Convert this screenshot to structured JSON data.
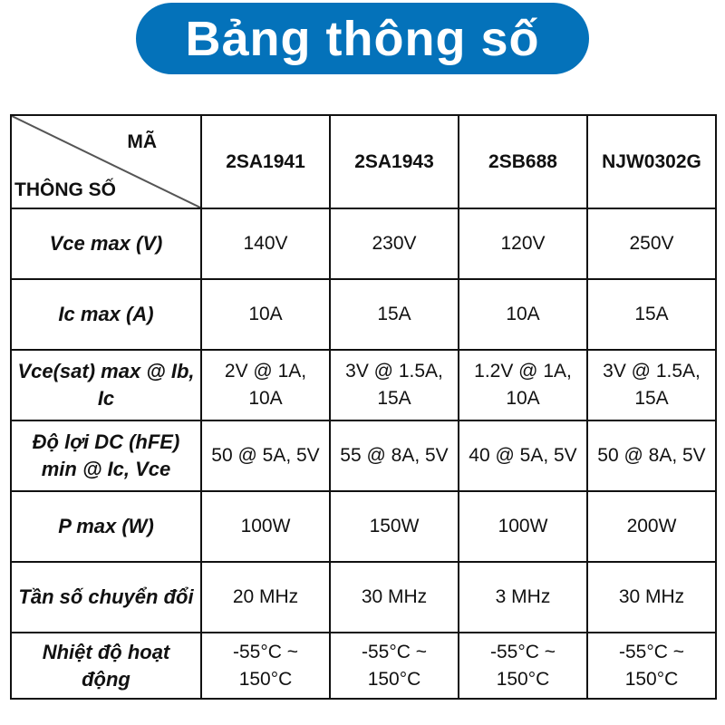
{
  "title": "Bảng thông số",
  "table": {
    "corner_top": "MÃ",
    "corner_bottom": "THÔNG SỐ",
    "columns": [
      "2SA1941",
      "2SA1943",
      "2SB688",
      "NJW0302G"
    ],
    "rows": [
      {
        "label": "Vce max (V)",
        "values": [
          "140V",
          "230V",
          "120V",
          "250V"
        ]
      },
      {
        "label": "Ic max (A)",
        "values": [
          "10A",
          "15A",
          "10A",
          "15A"
        ]
      },
      {
        "label": "Vce(sat) max @ Ib, Ic",
        "values": [
          "2V @ 1A, 10A",
          "3V @ 1.5A, 15A",
          "1.2V @ 1A, 10A",
          "3V @ 1.5A, 15A"
        ]
      },
      {
        "label": "Độ lợi DC (hFE) min @ Ic, Vce",
        "values": [
          "50 @ 5A, 5V",
          "55 @ 8A, 5V",
          "40 @ 5A, 5V",
          "50 @ 8A, 5V"
        ]
      },
      {
        "label": "P max (W)",
        "values": [
          "100W",
          "150W",
          "100W",
          "200W"
        ]
      },
      {
        "label": "Tần số chuyển đổi",
        "values": [
          "20 MHz",
          "30 MHz",
          "3 MHz",
          "30 MHz"
        ]
      },
      {
        "label": "Nhiệt độ hoạt động",
        "values": [
          "-55°C ~ 150°C",
          "-55°C ~ 150°C",
          "-55°C ~ 150°C",
          "-55°C ~ 150°C"
        ]
      }
    ]
  },
  "colors": {
    "title_bg": "#0472ba",
    "title_text": "#ffffff",
    "border": "#111111"
  }
}
